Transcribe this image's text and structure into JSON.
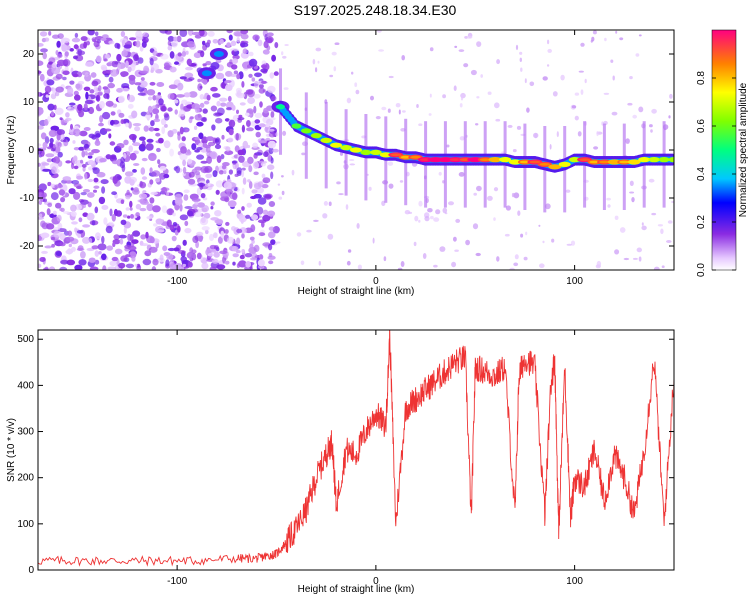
{
  "figure": {
    "title": "S197.2025.248.18.34.E30"
  },
  "chart_data": [
    {
      "type": "heatmap",
      "name": "spectrogram",
      "xlabel": "Height of straight line (km)",
      "ylabel": "Frequency (Hz)",
      "xlim": [
        -170,
        150
      ],
      "ylim": [
        -25,
        25
      ],
      "xticks": [
        -100,
        0,
        100
      ],
      "yticks": [
        -20,
        -10,
        0,
        10,
        20
      ],
      "colorbar": {
        "label": "Normalized spectral amplitude",
        "range": [
          0,
          1
        ],
        "ticks": [
          "0.0",
          "0.2",
          "0.4",
          "0.6",
          "0.8"
        ],
        "tick_values": [
          0.0,
          0.2,
          0.4,
          0.6,
          0.8
        ]
      },
      "signal_track": {
        "x": [
          -48,
          -40,
          -35,
          -30,
          -25,
          -20,
          -15,
          -10,
          -5,
          0,
          5,
          10,
          15,
          20,
          25,
          30,
          35,
          40,
          45,
          50,
          55,
          60,
          65,
          70,
          75,
          80,
          85,
          90,
          95,
          100,
          105,
          110,
          115,
          120,
          125,
          130,
          135,
          140,
          145,
          150
        ],
        "y": [
          9,
          5,
          4,
          3,
          2,
          1,
          0.5,
          0,
          -0.5,
          -0.5,
          -1,
          -1,
          -1.5,
          -1.5,
          -2,
          -2,
          -2,
          -2,
          -2,
          -2,
          -2,
          -2,
          -2,
          -2.5,
          -2.5,
          -2.5,
          -3,
          -3.5,
          -3,
          -2,
          -2,
          -2.5,
          -2.5,
          -2.5,
          -2.5,
          -2.5,
          -2,
          -2,
          -2,
          -2
        ],
        "amplitude": [
          0.3,
          0.4,
          0.45,
          0.5,
          0.55,
          0.6,
          0.55,
          0.6,
          0.5,
          0.55,
          0.6,
          0.9,
          0.8,
          0.85,
          0.95,
          1.0,
          1.0,
          0.95,
          0.9,
          1.0,
          0.85,
          0.7,
          0.6,
          0.6,
          0.8,
          0.9,
          0.85,
          0.7,
          0.6,
          0.55,
          0.9,
          0.8,
          0.85,
          0.7,
          0.8,
          0.65,
          0.6,
          0.55,
          0.5,
          0.5
        ]
      },
      "noise_region": {
        "x_range": [
          -170,
          -50
        ],
        "y_range": [
          -25,
          25
        ]
      },
      "noise_blobs": [
        [
          -85,
          16
        ],
        [
          -79,
          20
        ],
        [
          -48,
          9
        ]
      ]
    },
    {
      "type": "line",
      "name": "snr",
      "xlabel": "Height of straight line (km)",
      "ylabel": "SNR (10 * v/v)",
      "xlim": [
        -170,
        150
      ],
      "ylim": [
        0,
        520
      ],
      "xticks": [
        -100,
        0,
        100
      ],
      "yticks": [
        0,
        100,
        200,
        300,
        400,
        500
      ],
      "color": "#ee3333",
      "series": [
        {
          "name": "SNR",
          "x": [
            -170,
            -150,
            -130,
            -110,
            -90,
            -70,
            -60,
            -55,
            -50,
            -45,
            -40,
            -35,
            -30,
            -25,
            -22,
            -20,
            -15,
            -10,
            -5,
            0,
            5,
            7,
            10,
            15,
            20,
            25,
            30,
            35,
            40,
            45,
            48,
            50,
            55,
            60,
            65,
            70,
            72,
            75,
            80,
            85,
            88,
            90,
            92,
            95,
            98,
            100,
            105,
            110,
            115,
            120,
            125,
            130,
            135,
            140,
            145,
            150
          ],
          "y": [
            20,
            20,
            20,
            20,
            20,
            25,
            25,
            30,
            35,
            60,
            90,
            130,
            200,
            250,
            280,
            140,
            260,
            250,
            300,
            340,
            310,
            510,
            100,
            350,
            370,
            390,
            410,
            430,
            450,
            460,
            110,
            440,
            430,
            420,
            440,
            120,
            420,
            460,
            440,
            120,
            400,
            460,
            80,
            440,
            110,
            200,
            180,
            260,
            150,
            250,
            200,
            120,
            260,
            460,
            100,
            420
          ]
        }
      ]
    }
  ]
}
